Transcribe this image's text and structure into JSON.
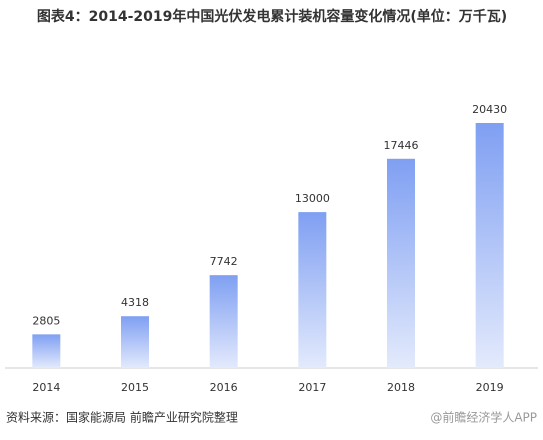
{
  "chart_data": {
    "type": "bar",
    "title": "图表4：2014-2019年中国光伏发电累计装机容量变化情况(单位：万千瓦)",
    "categories": [
      "2014",
      "2015",
      "2016",
      "2017",
      "2018",
      "2019"
    ],
    "values": [
      2805,
      4318,
      7742,
      13000,
      17446,
      20430
    ],
    "color": "#7f9ff2",
    "source": "资料来源：国家能源局 前瞻产业研究院整理",
    "brand": "@前瞻经济学人APP"
  }
}
